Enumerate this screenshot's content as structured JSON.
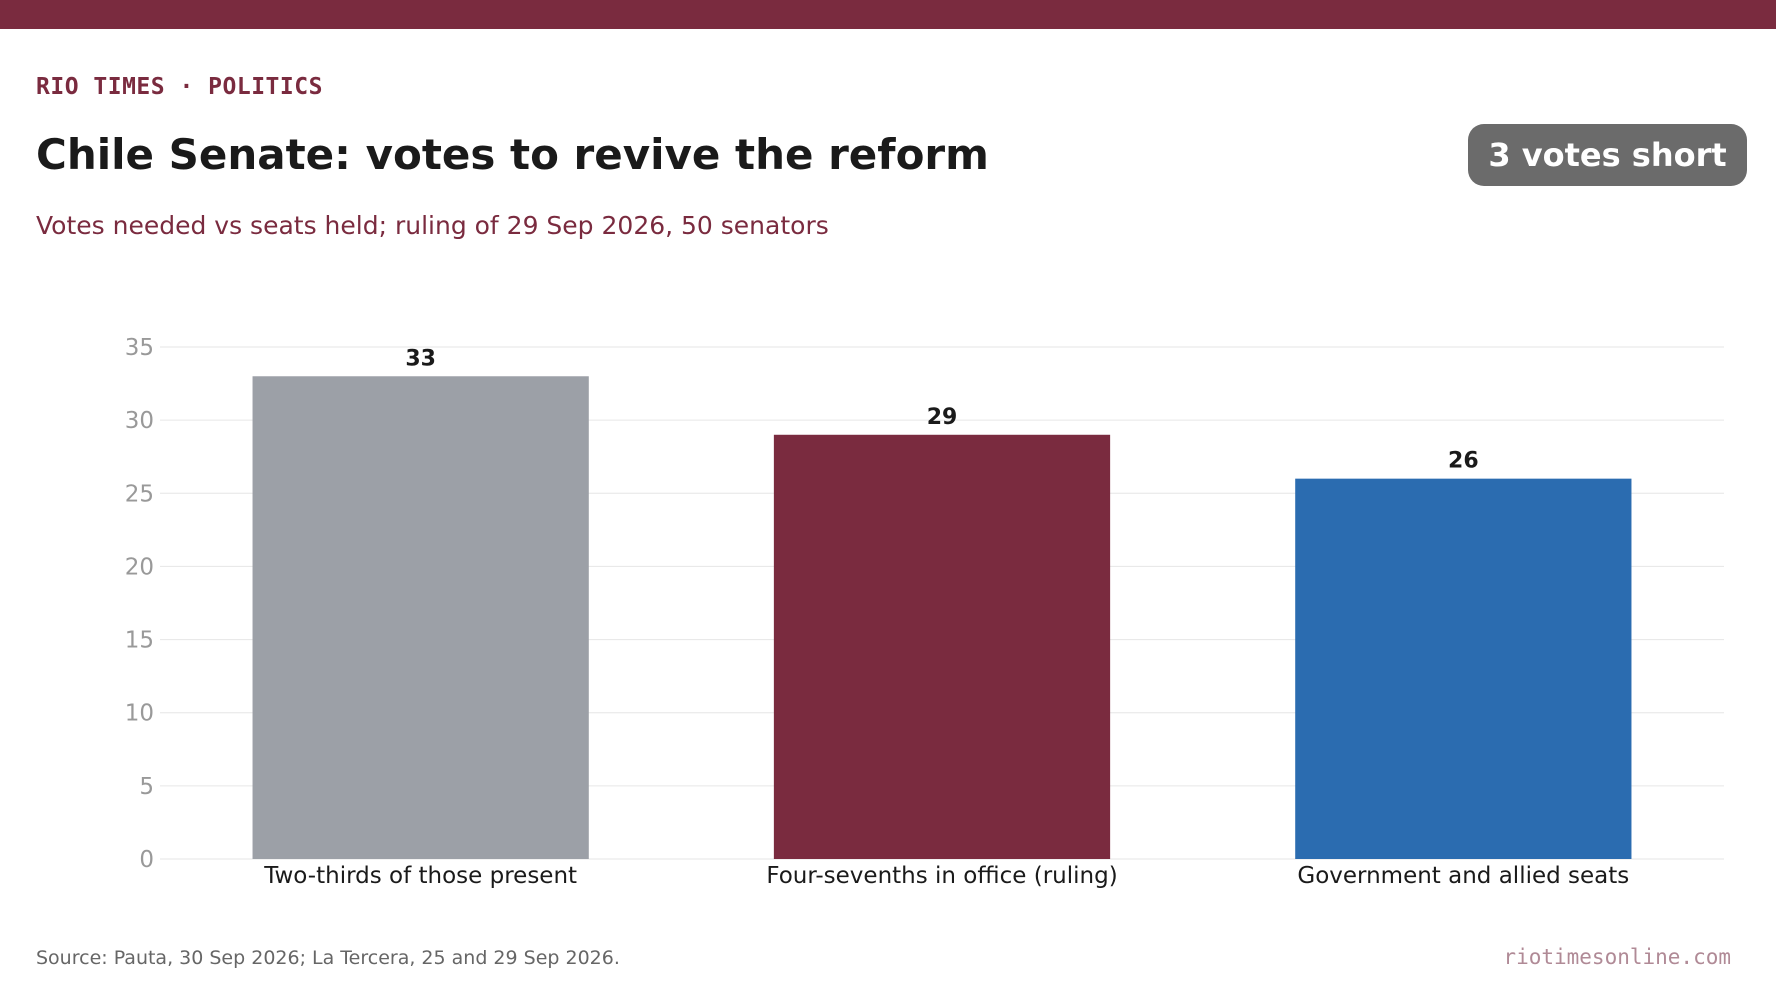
{
  "header": {
    "kicker": "RIO TIMES · POLITICS",
    "title": "Chile Senate: votes to revive the reform",
    "subtitle": "Votes needed vs seats held; ruling of 29 Sep 2026, 50 senators",
    "badge": "3 votes short"
  },
  "footer": {
    "source": "Source: Pauta, 30 Sep 2026; La Tercera, 25 and 29 Sep 2026.",
    "site": "riotimesonline.com"
  },
  "colors": {
    "brand": "#7a2b3f",
    "badge": "#6b6b6b",
    "grid": "#e6e6e6",
    "tick": "#999999"
  },
  "chart_data": {
    "type": "bar",
    "categories": [
      "Two-thirds of those present",
      "Four-sevenths in office (ruling)",
      "Government and allied seats"
    ],
    "values": [
      33,
      29,
      26
    ],
    "colors": [
      "#9ca0a7",
      "#7a2b3f",
      "#2b6cb0"
    ],
    "data_labels": [
      "33",
      "29",
      "26"
    ],
    "ylim": [
      0,
      35
    ],
    "yticks": [
      0,
      5,
      10,
      15,
      20,
      25,
      30,
      35
    ],
    "grid": true,
    "legend": "none"
  }
}
